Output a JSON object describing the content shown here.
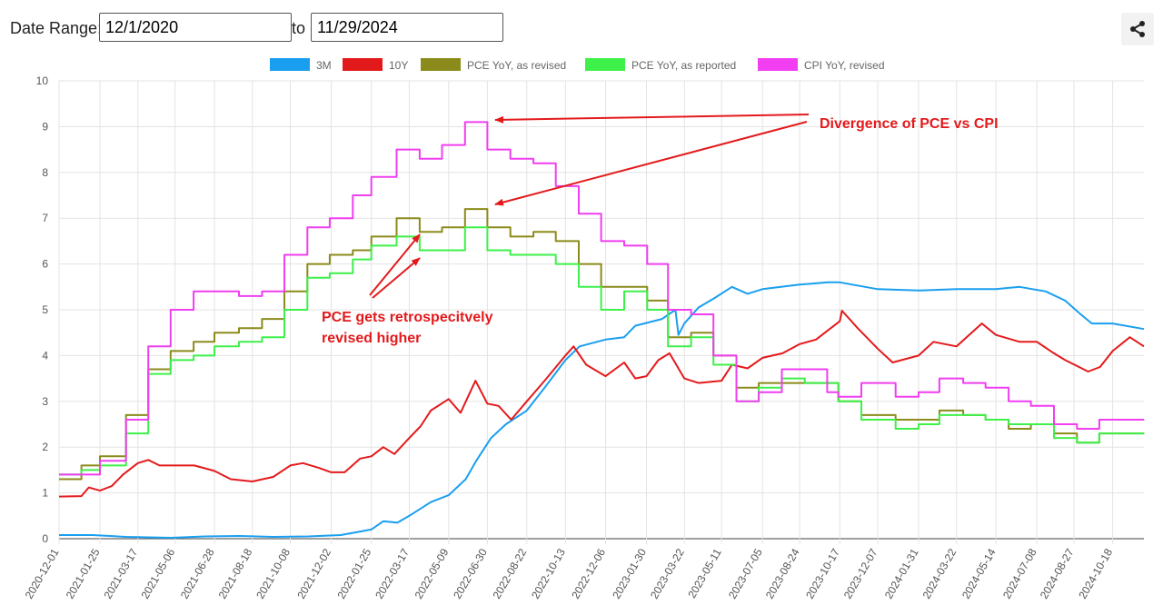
{
  "toolbar": {
    "date_range_label": "Date Range:",
    "start_date": "12/1/2020",
    "to_label": "to",
    "end_date": "11/29/2024",
    "share_icon": "share-icon"
  },
  "chart_data": {
    "type": "line",
    "title": "",
    "xlabel": "",
    "ylabel": "",
    "ylim": [
      0,
      10
    ],
    "yticks": [
      0,
      1,
      2,
      3,
      4,
      5,
      6,
      7,
      8,
      9,
      10
    ],
    "xlim": [
      "2020-12-01",
      "2024-11-29"
    ],
    "xticks": [
      "2020-12-01",
      "2021-01-25",
      "2021-03-17",
      "2021-05-06",
      "2021-06-28",
      "2021-08-18",
      "2021-10-08",
      "2021-12-02",
      "2022-01-25",
      "2022-03-17",
      "2022-05-09",
      "2022-06-30",
      "2022-08-22",
      "2022-10-13",
      "2022-12-06",
      "2023-01-30",
      "2023-03-22",
      "2023-05-11",
      "2023-07-05",
      "2023-08-24",
      "2023-10-17",
      "2023-12-07",
      "2024-01-31",
      "2024-03-22",
      "2024-05-14",
      "2024-07-08",
      "2024-08-27",
      "2024-10-18"
    ],
    "grid": true,
    "legend_position": "top",
    "series": [
      {
        "name": "3M",
        "color": "#1a9ff0",
        "step": false,
        "points": [
          [
            "2020-12-01",
            0.08
          ],
          [
            "2021-01-15",
            0.08
          ],
          [
            "2021-03-01",
            0.04
          ],
          [
            "2021-05-01",
            0.02
          ],
          [
            "2021-06-15",
            0.05
          ],
          [
            "2021-08-01",
            0.06
          ],
          [
            "2021-09-15",
            0.04
          ],
          [
            "2021-11-01",
            0.05
          ],
          [
            "2021-12-15",
            0.08
          ],
          [
            "2022-01-25",
            0.2
          ],
          [
            "2022-02-10",
            0.38
          ],
          [
            "2022-03-01",
            0.35
          ],
          [
            "2022-03-17",
            0.5
          ],
          [
            "2022-04-15",
            0.8
          ],
          [
            "2022-05-09",
            0.95
          ],
          [
            "2022-06-01",
            1.3
          ],
          [
            "2022-06-15",
            1.7
          ],
          [
            "2022-07-05",
            2.2
          ],
          [
            "2022-07-25",
            2.5
          ],
          [
            "2022-08-22",
            2.8
          ],
          [
            "2022-09-15",
            3.3
          ],
          [
            "2022-10-13",
            3.9
          ],
          [
            "2022-11-01",
            4.2
          ],
          [
            "2022-12-06",
            4.35
          ],
          [
            "2022-12-31",
            4.4
          ],
          [
            "2023-01-15",
            4.65
          ],
          [
            "2023-02-20",
            4.8
          ],
          [
            "2023-03-10",
            5.0
          ],
          [
            "2023-03-14",
            4.45
          ],
          [
            "2023-03-22",
            4.7
          ],
          [
            "2023-04-10",
            5.05
          ],
          [
            "2023-05-01",
            5.25
          ],
          [
            "2023-05-25",
            5.5
          ],
          [
            "2023-06-15",
            5.35
          ],
          [
            "2023-07-05",
            5.45
          ],
          [
            "2023-08-24",
            5.55
          ],
          [
            "2023-10-01",
            5.6
          ],
          [
            "2023-10-17",
            5.6
          ],
          [
            "2023-12-07",
            5.45
          ],
          [
            "2024-01-31",
            5.42
          ],
          [
            "2024-03-22",
            5.45
          ],
          [
            "2024-05-14",
            5.45
          ],
          [
            "2024-06-15",
            5.5
          ],
          [
            "2024-07-20",
            5.4
          ],
          [
            "2024-08-15",
            5.2
          ],
          [
            "2024-09-05",
            4.9
          ],
          [
            "2024-09-20",
            4.7
          ],
          [
            "2024-10-18",
            4.7
          ],
          [
            "2024-11-29",
            4.58
          ]
        ]
      },
      {
        "name": "10Y",
        "color": "#e31a1c",
        "step": false,
        "points": [
          [
            "2020-12-01",
            0.92
          ],
          [
            "2020-12-31",
            0.93
          ],
          [
            "2021-01-10",
            1.12
          ],
          [
            "2021-01-25",
            1.05
          ],
          [
            "2021-02-10",
            1.15
          ],
          [
            "2021-02-25",
            1.4
          ],
          [
            "2021-03-17",
            1.65
          ],
          [
            "2021-03-31",
            1.72
          ],
          [
            "2021-04-15",
            1.6
          ],
          [
            "2021-05-06",
            1.6
          ],
          [
            "2021-06-01",
            1.6
          ],
          [
            "2021-06-28",
            1.48
          ],
          [
            "2021-07-20",
            1.3
          ],
          [
            "2021-08-18",
            1.25
          ],
          [
            "2021-09-15",
            1.35
          ],
          [
            "2021-10-08",
            1.6
          ],
          [
            "2021-10-25",
            1.65
          ],
          [
            "2021-11-15",
            1.55
          ],
          [
            "2021-12-02",
            1.45
          ],
          [
            "2021-12-20",
            1.45
          ],
          [
            "2022-01-10",
            1.75
          ],
          [
            "2022-01-25",
            1.8
          ],
          [
            "2022-02-10",
            2.0
          ],
          [
            "2022-02-25",
            1.85
          ],
          [
            "2022-03-17",
            2.2
          ],
          [
            "2022-04-01",
            2.45
          ],
          [
            "2022-04-15",
            2.8
          ],
          [
            "2022-05-09",
            3.05
          ],
          [
            "2022-05-25",
            2.75
          ],
          [
            "2022-06-14",
            3.45
          ],
          [
            "2022-06-30",
            2.95
          ],
          [
            "2022-07-15",
            2.9
          ],
          [
            "2022-08-01",
            2.6
          ],
          [
            "2022-08-22",
            3.0
          ],
          [
            "2022-09-15",
            3.45
          ],
          [
            "2022-10-13",
            4.0
          ],
          [
            "2022-10-24",
            4.2
          ],
          [
            "2022-11-10",
            3.8
          ],
          [
            "2022-12-06",
            3.55
          ],
          [
            "2022-12-31",
            3.85
          ],
          [
            "2023-01-15",
            3.5
          ],
          [
            "2023-01-30",
            3.55
          ],
          [
            "2023-02-15",
            3.9
          ],
          [
            "2023-03-02",
            4.05
          ],
          [
            "2023-03-22",
            3.5
          ],
          [
            "2023-04-10",
            3.4
          ],
          [
            "2023-05-11",
            3.45
          ],
          [
            "2023-05-25",
            3.8
          ],
          [
            "2023-06-15",
            3.72
          ],
          [
            "2023-07-05",
            3.95
          ],
          [
            "2023-08-01",
            4.05
          ],
          [
            "2023-08-24",
            4.25
          ],
          [
            "2023-09-15",
            4.35
          ],
          [
            "2023-10-17",
            4.75
          ],
          [
            "2023-10-20",
            4.98
          ],
          [
            "2023-11-10",
            4.6
          ],
          [
            "2023-12-07",
            4.15
          ],
          [
            "2023-12-27",
            3.85
          ],
          [
            "2024-01-31",
            4.0
          ],
          [
            "2024-02-20",
            4.3
          ],
          [
            "2024-03-22",
            4.2
          ],
          [
            "2024-04-25",
            4.7
          ],
          [
            "2024-05-14",
            4.45
          ],
          [
            "2024-06-15",
            4.3
          ],
          [
            "2024-07-08",
            4.3
          ],
          [
            "2024-07-31",
            4.05
          ],
          [
            "2024-08-15",
            3.9
          ],
          [
            "2024-09-15",
            3.65
          ],
          [
            "2024-10-01",
            3.75
          ],
          [
            "2024-10-18",
            4.1
          ],
          [
            "2024-11-10",
            4.4
          ],
          [
            "2024-11-29",
            4.2
          ]
        ]
      },
      {
        "name": "PCE YoY, as revised",
        "color": "#8b8b1b",
        "step": true,
        "points": [
          [
            "2020-12-01",
            1.3
          ],
          [
            "2020-12-31",
            1.6
          ],
          [
            "2021-01-25",
            1.8
          ],
          [
            "2021-03-01",
            2.7
          ],
          [
            "2021-03-31",
            3.7
          ],
          [
            "2021-04-30",
            4.1
          ],
          [
            "2021-05-31",
            4.3
          ],
          [
            "2021-06-28",
            4.5
          ],
          [
            "2021-07-31",
            4.6
          ],
          [
            "2021-08-31",
            4.8
          ],
          [
            "2021-09-30",
            5.4
          ],
          [
            "2021-10-31",
            6.0
          ],
          [
            "2021-11-30",
            6.2
          ],
          [
            "2021-12-31",
            6.3
          ],
          [
            "2022-01-25",
            6.6
          ],
          [
            "2022-02-28",
            7.0
          ],
          [
            "2022-03-31",
            6.7
          ],
          [
            "2022-04-30",
            6.8
          ],
          [
            "2022-05-31",
            7.2
          ],
          [
            "2022-06-30",
            6.8
          ],
          [
            "2022-07-31",
            6.6
          ],
          [
            "2022-08-31",
            6.7
          ],
          [
            "2022-09-30",
            6.5
          ],
          [
            "2022-10-31",
            6.0
          ],
          [
            "2022-11-30",
            5.5
          ],
          [
            "2022-12-31",
            5.5
          ],
          [
            "2023-01-31",
            5.2
          ],
          [
            "2023-02-28",
            4.4
          ],
          [
            "2023-03-31",
            4.5
          ],
          [
            "2023-04-30",
            4.0
          ],
          [
            "2023-05-31",
            3.3
          ],
          [
            "2023-06-30",
            3.4
          ],
          [
            "2023-07-31",
            3.4
          ],
          [
            "2023-08-31",
            3.4
          ],
          [
            "2023-09-30",
            3.4
          ],
          [
            "2023-10-15",
            3.0
          ],
          [
            "2023-11-15",
            2.7
          ],
          [
            "2023-12-31",
            2.6
          ],
          [
            "2024-01-31",
            2.6
          ],
          [
            "2024-02-28",
            2.8
          ],
          [
            "2024-03-31",
            2.7
          ],
          [
            "2024-04-30",
            2.6
          ],
          [
            "2024-05-31",
            2.4
          ],
          [
            "2024-06-30",
            2.5
          ],
          [
            "2024-07-31",
            2.3
          ],
          [
            "2024-08-31",
            2.1
          ],
          [
            "2024-09-30",
            2.3
          ],
          [
            "2024-10-31",
            2.3
          ]
        ]
      },
      {
        "name": "PCE YoY, as reported",
        "color": "#3ef04a",
        "step": true,
        "points": [
          [
            "2020-12-01",
            1.4
          ],
          [
            "2020-12-31",
            1.5
          ],
          [
            "2021-01-25",
            1.6
          ],
          [
            "2021-03-01",
            2.3
          ],
          [
            "2021-03-31",
            3.6
          ],
          [
            "2021-04-30",
            3.9
          ],
          [
            "2021-05-31",
            4.0
          ],
          [
            "2021-06-28",
            4.2
          ],
          [
            "2021-07-31",
            4.3
          ],
          [
            "2021-08-31",
            4.4
          ],
          [
            "2021-09-30",
            5.0
          ],
          [
            "2021-10-31",
            5.7
          ],
          [
            "2021-11-30",
            5.8
          ],
          [
            "2021-12-31",
            6.1
          ],
          [
            "2022-01-25",
            6.4
          ],
          [
            "2022-02-28",
            6.6
          ],
          [
            "2022-03-31",
            6.3
          ],
          [
            "2022-04-30",
            6.3
          ],
          [
            "2022-05-31",
            6.8
          ],
          [
            "2022-06-30",
            6.3
          ],
          [
            "2022-07-31",
            6.2
          ],
          [
            "2022-08-31",
            6.2
          ],
          [
            "2022-09-30",
            6.0
          ],
          [
            "2022-10-31",
            5.5
          ],
          [
            "2022-11-30",
            5.0
          ],
          [
            "2022-12-31",
            5.4
          ],
          [
            "2023-01-31",
            5.0
          ],
          [
            "2023-02-28",
            4.2
          ],
          [
            "2023-03-31",
            4.4
          ],
          [
            "2023-04-30",
            3.8
          ],
          [
            "2023-05-31",
            3.0
          ],
          [
            "2023-06-30",
            3.3
          ],
          [
            "2023-07-31",
            3.5
          ],
          [
            "2023-08-31",
            3.4
          ],
          [
            "2023-09-30",
            3.4
          ],
          [
            "2023-10-15",
            3.0
          ],
          [
            "2023-11-15",
            2.6
          ],
          [
            "2023-12-31",
            2.4
          ],
          [
            "2024-01-31",
            2.5
          ],
          [
            "2024-02-28",
            2.7
          ],
          [
            "2024-03-31",
            2.7
          ],
          [
            "2024-04-30",
            2.6
          ],
          [
            "2024-05-31",
            2.5
          ],
          [
            "2024-06-30",
            2.5
          ],
          [
            "2024-07-31",
            2.2
          ],
          [
            "2024-08-31",
            2.1
          ],
          [
            "2024-09-30",
            2.3
          ],
          [
            "2024-10-31",
            2.3
          ]
        ]
      },
      {
        "name": "CPI YoY, revised",
        "color": "#f03ef0",
        "step": true,
        "points": [
          [
            "2020-12-01",
            1.4
          ],
          [
            "2021-01-25",
            1.7
          ],
          [
            "2021-03-01",
            2.6
          ],
          [
            "2021-03-31",
            4.2
          ],
          [
            "2021-04-30",
            5.0
          ],
          [
            "2021-05-31",
            5.4
          ],
          [
            "2021-06-28",
            5.4
          ],
          [
            "2021-07-31",
            5.3
          ],
          [
            "2021-08-31",
            5.4
          ],
          [
            "2021-09-30",
            6.2
          ],
          [
            "2021-10-31",
            6.8
          ],
          [
            "2021-11-30",
            7.0
          ],
          [
            "2021-12-31",
            7.5
          ],
          [
            "2022-01-25",
            7.9
          ],
          [
            "2022-02-28",
            8.5
          ],
          [
            "2022-03-31",
            8.3
          ],
          [
            "2022-04-30",
            8.6
          ],
          [
            "2022-05-31",
            9.1
          ],
          [
            "2022-06-30",
            8.5
          ],
          [
            "2022-07-31",
            8.3
          ],
          [
            "2022-08-31",
            8.2
          ],
          [
            "2022-09-30",
            7.7
          ],
          [
            "2022-10-31",
            7.1
          ],
          [
            "2022-11-30",
            6.5
          ],
          [
            "2022-12-31",
            6.4
          ],
          [
            "2023-01-31",
            6.0
          ],
          [
            "2023-02-28",
            5.0
          ],
          [
            "2023-03-31",
            4.9
          ],
          [
            "2023-04-30",
            4.0
          ],
          [
            "2023-05-31",
            3.0
          ],
          [
            "2023-06-30",
            3.2
          ],
          [
            "2023-07-31",
            3.7
          ],
          [
            "2023-08-31",
            3.7
          ],
          [
            "2023-09-30",
            3.2
          ],
          [
            "2023-10-15",
            3.1
          ],
          [
            "2023-11-15",
            3.4
          ],
          [
            "2023-12-31",
            3.1
          ],
          [
            "2024-01-31",
            3.2
          ],
          [
            "2024-02-28",
            3.5
          ],
          [
            "2024-03-31",
            3.4
          ],
          [
            "2024-04-30",
            3.3
          ],
          [
            "2024-05-31",
            3.0
          ],
          [
            "2024-06-30",
            2.9
          ],
          [
            "2024-07-31",
            2.5
          ],
          [
            "2024-08-31",
            2.4
          ],
          [
            "2024-09-30",
            2.6
          ],
          [
            "2024-10-31",
            2.6
          ]
        ]
      }
    ],
    "annotations": [
      {
        "text": "Divergence of PCE vs CPI",
        "color": "#e31a1c"
      },
      {
        "text_lines": [
          "PCE gets retrospecitvely",
          "revised higher"
        ],
        "color": "#e31a1c"
      }
    ]
  }
}
